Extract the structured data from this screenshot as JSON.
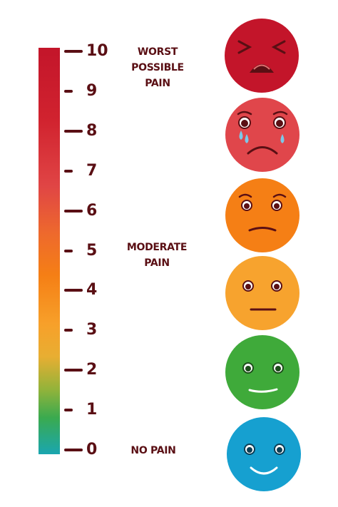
{
  "scale": {
    "levels": [
      {
        "value": "0",
        "major": true
      },
      {
        "value": "1",
        "major": false
      },
      {
        "value": "2",
        "major": true
      },
      {
        "value": "3",
        "major": false
      },
      {
        "value": "4",
        "major": true
      },
      {
        "value": "5",
        "major": false
      },
      {
        "value": "6",
        "major": true
      },
      {
        "value": "7",
        "major": false
      },
      {
        "value": "8",
        "major": true
      },
      {
        "value": "9",
        "major": false
      },
      {
        "value": "10",
        "major": true
      }
    ],
    "labels": {
      "worst_line1": "WORST POSSIBLE",
      "worst_line2": "PAIN",
      "moderate": "MODERATE PAIN",
      "none": "NO PAIN"
    },
    "text_color": "#5a0f14"
  },
  "faces": [
    {
      "name": "worst-pain-face",
      "color": "#c3152a"
    },
    {
      "name": "severe-pain-face",
      "color": "#e0464b"
    },
    {
      "name": "moderate-severe-pain-face",
      "color": "#f57f15"
    },
    {
      "name": "moderate-pain-face",
      "color": "#f7a32e"
    },
    {
      "name": "mild-pain-face",
      "color": "#3faa3a"
    },
    {
      "name": "no-pain-face",
      "color": "#16a0d0"
    }
  ]
}
